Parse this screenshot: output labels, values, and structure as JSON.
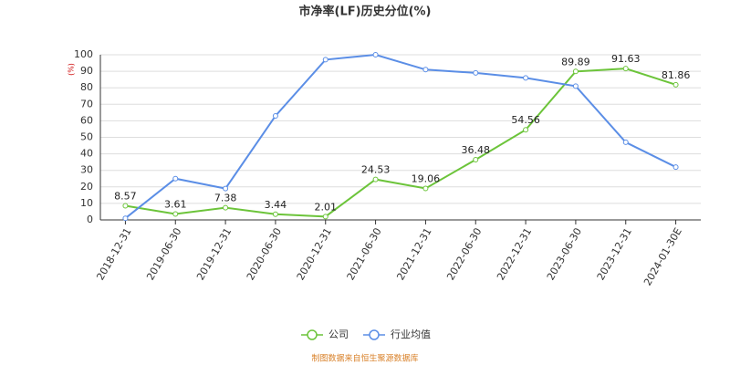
{
  "chart_data": {
    "type": "line",
    "title": "市净率(LF)历史分位(%)",
    "y_label": "(%)",
    "categories": [
      "2018-12-31",
      "2019-06-30",
      "2019-12-31",
      "2020-06-30",
      "2020-12-31",
      "2021-06-30",
      "2021-12-31",
      "2022-06-30",
      "2022-12-31",
      "2023-06-30",
      "2023-12-31",
      "2024-01-30E"
    ],
    "series": [
      {
        "name": "公司",
        "color": "#6cc43a",
        "values": [
          8.57,
          3.61,
          7.38,
          3.44,
          2.01,
          24.53,
          19.06,
          36.48,
          54.56,
          89.89,
          91.63,
          81.86
        ],
        "labels": true
      },
      {
        "name": "行业均值",
        "color": "#5b8ee6",
        "values": [
          1,
          25,
          19,
          63,
          97,
          100,
          91,
          89,
          86,
          81,
          47,
          32
        ],
        "labels": false
      }
    ],
    "ylim": [
      0,
      100
    ],
    "yticks": [
      0,
      10,
      20,
      30,
      40,
      50,
      60,
      70,
      80,
      90,
      100
    ],
    "grid": true,
    "source": "制图数据来自恒生聚源数据库"
  }
}
